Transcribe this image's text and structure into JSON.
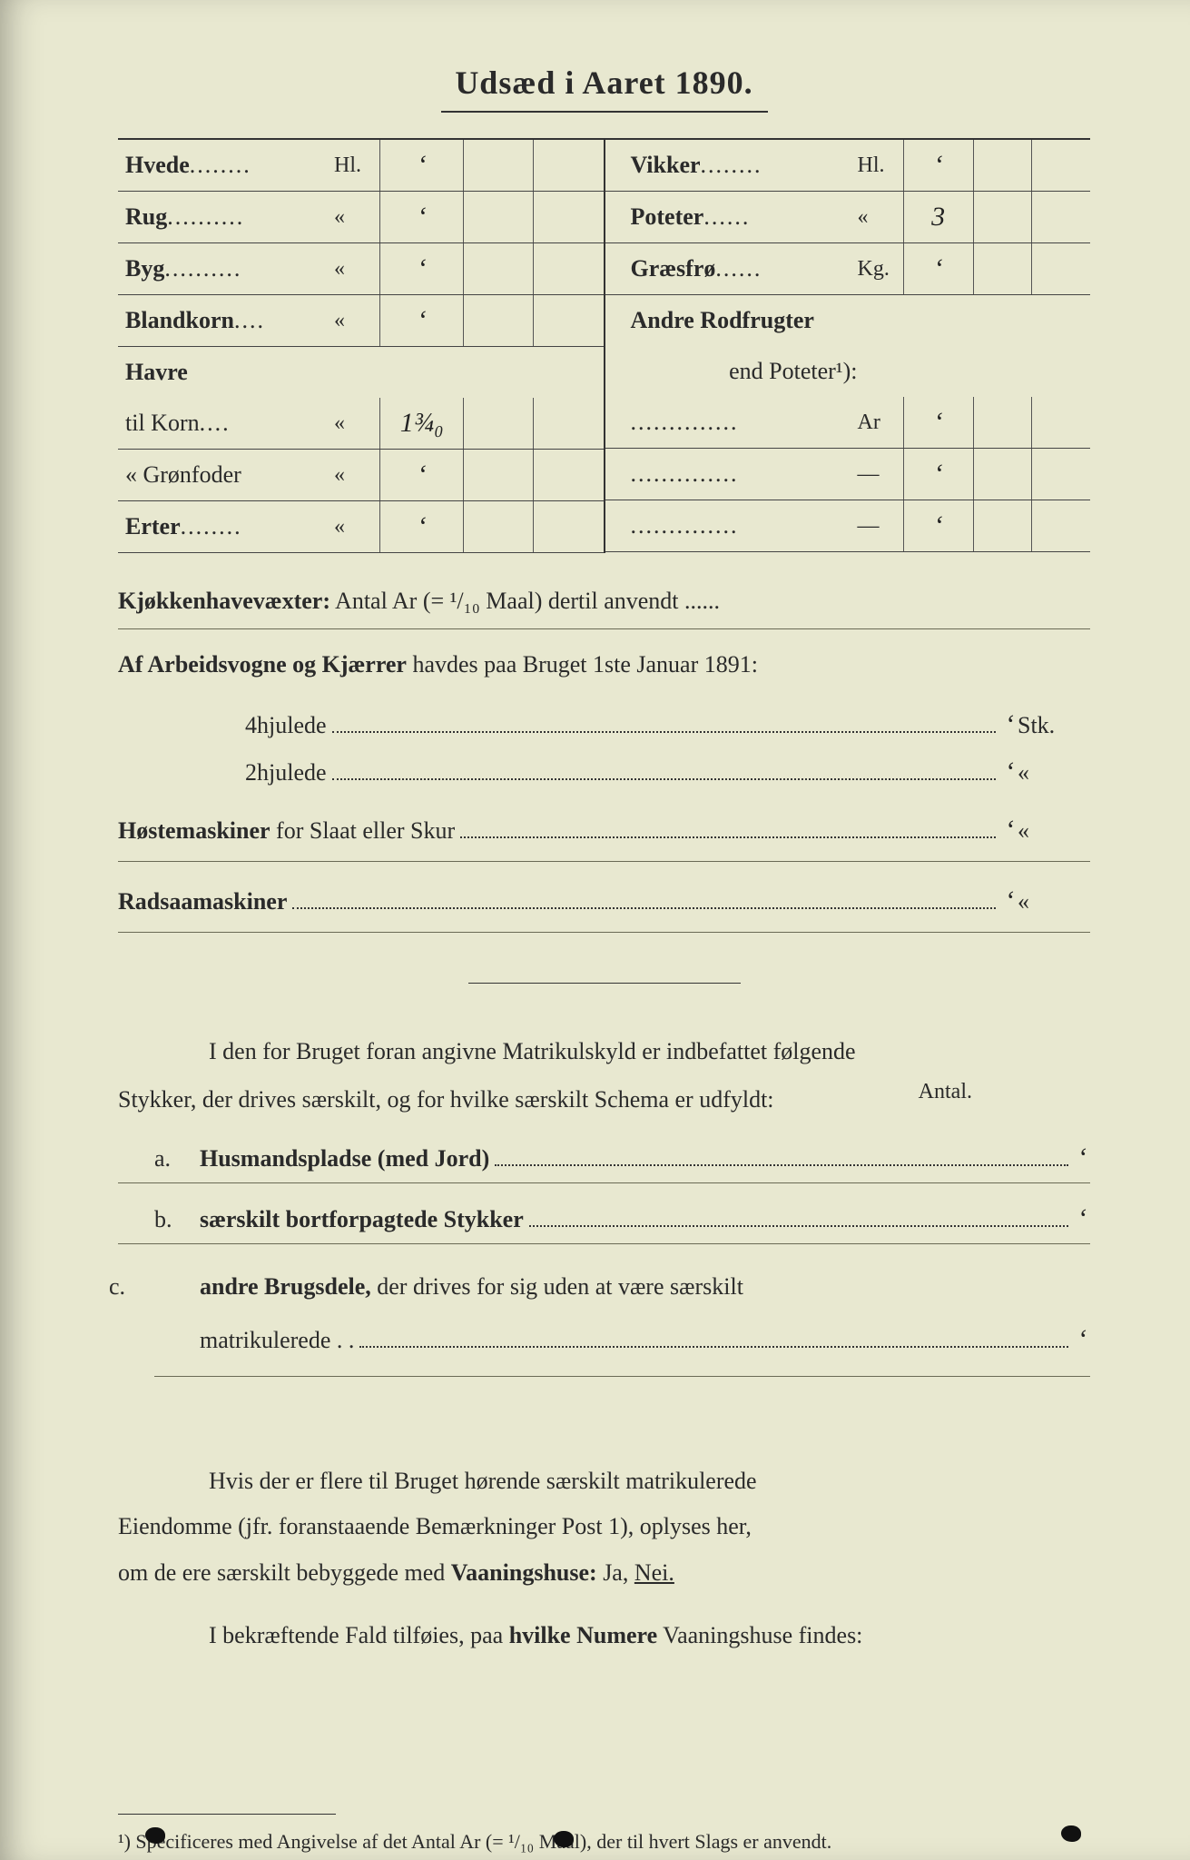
{
  "title": "Udsæd i Aaret 1890.",
  "table": {
    "left": [
      {
        "label_bold": "Hvede",
        "dots": "........",
        "unit": "Hl.",
        "val": "ʻ"
      },
      {
        "label_bold": "Rug",
        "dots": "..........",
        "unit": "«",
        "val": "ʻ"
      },
      {
        "label_bold": "Byg",
        "dots": "..........",
        "unit": "«",
        "val": "ʻ"
      },
      {
        "label_bold": "Blandkorn",
        "dots": "....",
        "unit": "«",
        "val": "ʻ"
      },
      {
        "label_bold": "Havre",
        "dots": "",
        "unit": "",
        "val": "",
        "nocells": true
      },
      {
        "label_plain": "   til Korn",
        "dots": "....",
        "unit": "«",
        "val": "1¾₀"
      },
      {
        "label_plain": "« Grønfoder",
        "dots": "",
        "unit": "«",
        "val": "ʻ"
      },
      {
        "label_bold": "Erter",
        "dots": "........",
        "unit": "«",
        "val": "ʻ"
      }
    ],
    "right": [
      {
        "label_bold": "Vikker",
        "dots": "........",
        "unit": "Hl.",
        "val": "ʻ"
      },
      {
        "label_bold": "Poteter",
        "dots": "......",
        "unit": "«",
        "val": "3"
      },
      {
        "label_bold": "Græsfrø",
        "dots": "......",
        "unit": "Kg.",
        "val": "ʻ"
      },
      {
        "label_bold": "Andre Rodfrugter",
        "dots": "",
        "unit": "",
        "val": "",
        "nocells": true
      },
      {
        "label_plain": "end Poteter¹):",
        "dots": "",
        "unit": "",
        "val": "",
        "nocells": true,
        "align": "right"
      },
      {
        "label_plain": "",
        "dots": "..............",
        "unit": "Ar",
        "val": "ʻ"
      },
      {
        "label_plain": "",
        "dots": "..............",
        "unit": "—",
        "val": "ʻ"
      },
      {
        "label_plain": "",
        "dots": "..............",
        "unit": "—",
        "val": "ʻ"
      }
    ]
  },
  "kjokken": {
    "bold": "Kjøkkenhavevæxter:",
    "rest": " Antal Ar (= ¹/₁₀ Maal) dertil anvendt ......"
  },
  "arbeidsvogne": {
    "bold": "Af Arbeidsvogne og Kjærrer",
    "rest": " havdes paa Bruget 1ste Januar 1891:"
  },
  "wheels": [
    {
      "label": "4hjulede",
      "val": "ʻ",
      "tail": "Stk."
    },
    {
      "label": "2hjulede",
      "val": "ʻ",
      "tail": "«"
    }
  ],
  "hoste": {
    "bold": "Høstemaskiner",
    "rest": " for Slaat eller Skur",
    "val": "ʻ",
    "tail": "«"
  },
  "radsaa": {
    "bold": "Radsaamaskiner",
    "val": "ʻ",
    "tail": "«"
  },
  "para1_l1": "I den for Bruget foran angivne Matrikulskyld er indbefattet følgende",
  "para1_l2": "Stykker, der drives særskilt, og for hvilke særskilt Schema er udfyldt:",
  "antal": "Antal.",
  "list": [
    {
      "letter": "a.",
      "bold": "Husmandspladse (med Jord)",
      "val": "ʻ"
    },
    {
      "letter": "b.",
      "bold": "særskilt bortforpagtede Stykker",
      "val": "ʻ"
    }
  ],
  "list_c": {
    "letter": "c.",
    "bold": "andre Brugsdele,",
    "rest": " der drives for sig uden at være særskilt",
    "line2": "matrikulerede . .",
    "val": "ʻ"
  },
  "para2_l1": "Hvis der er flere til Bruget hørende særskilt matrikulerede",
  "para2_l2": "Eiendomme (jfr. foranstaaende Bemærkninger Post 1), oplyses her,",
  "para2_l3a": "om de ere særskilt bebyggede med ",
  "para2_l3b": "Vaaningshuse:",
  "para2_l3c": " Ja, ",
  "para2_nei": "Nei.",
  "para3a": "I bekræftende Fald tilføies, paa ",
  "para3b": "hvilke Numere",
  "para3c": " Vaaningshuse findes:",
  "footnote": "¹) Specificeres med Angivelse af det Antal Ar (= ¹/₁₀ Maal), der til hvert Slags er anvendt.",
  "colors": {
    "page_bg": "#e8e8d0",
    "text": "#2a2a2a",
    "rule": "#333333"
  }
}
